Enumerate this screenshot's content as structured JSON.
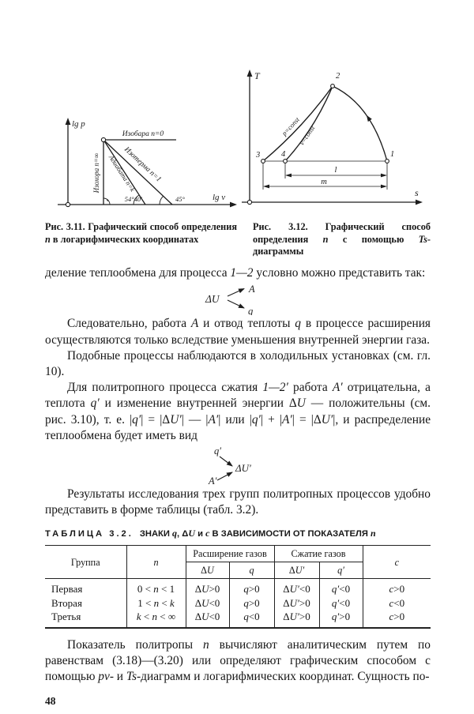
{
  "page_number": "48",
  "figures": {
    "fig311": {
      "labels": {
        "y_axis": "lg p",
        "x_axis": "lg v",
        "isobar": "Изобара n=0",
        "isochore": "Изохора n=∞",
        "isotherm": "Изотерма n=1",
        "adiabat": "Адиабата n=k",
        "angle_adiabat": "54°40′",
        "angle_isotherm": "45°"
      },
      "caption": [
        [
          "Рис. 3.11. Графический способ определения "
        ],
        [
          "n",
          "i"
        ],
        [
          " в логарифмических координатах"
        ]
      ]
    },
    "fig312": {
      "labels": {
        "y_axis": "T",
        "x_axis": "s",
        "curve_p": "p=const",
        "curve_v": "v=const",
        "point_1": "1",
        "point_2": "2",
        "point_3": "3",
        "point_4": "4",
        "dim_l": "l",
        "dim_m": "m"
      },
      "caption": [
        [
          "Рис. 3.12. Графический способ определения "
        ],
        [
          "n",
          "i"
        ],
        [
          " с помощью "
        ],
        [
          "Ts",
          "i"
        ],
        [
          "-диаграммы"
        ]
      ]
    }
  },
  "body": {
    "p1": [
      [
        "деление теплообмена для процесса "
      ],
      [
        "1—2",
        "i"
      ],
      [
        " условно можно представить так:"
      ]
    ],
    "scheme1": {
      "du": "ΔU",
      "a": "A",
      "q": "q"
    },
    "p2": [
      [
        "Следовательно, работа "
      ],
      [
        "A",
        "i"
      ],
      [
        " и отвод теплоты "
      ],
      [
        "q",
        "i"
      ],
      [
        " в процессе расширения осуществляются только вследствие уменьшения внутренней энергии газа."
      ]
    ],
    "p3": [
      [
        "Подобные процессы наблюдаются в холодильных установках (см. гл. 10)."
      ]
    ],
    "p4": [
      [
        "Для политропного процесса сжатия "
      ],
      [
        "1—2′",
        "i"
      ],
      [
        " работа "
      ],
      [
        "A′",
        "i"
      ],
      [
        " отрицательна, а теплота "
      ],
      [
        "q′",
        "i"
      ],
      [
        " и изменение внутренней энергии Δ"
      ],
      [
        "U",
        "i"
      ],
      [
        " — положительны (см. рис. 3.10), т. е. |"
      ],
      [
        "q′",
        "i"
      ],
      [
        "| = |Δ"
      ],
      [
        "U′",
        "i"
      ],
      [
        "| — |"
      ],
      [
        "A′",
        "i"
      ],
      [
        "| или |"
      ],
      [
        "q′",
        "i"
      ],
      [
        "| + |"
      ],
      [
        "A′",
        "i"
      ],
      [
        "| = |Δ"
      ],
      [
        "U′",
        "i"
      ],
      [
        "|, и распределение теплообмена будет иметь вид"
      ]
    ],
    "scheme2": {
      "q": "q′",
      "du": "ΔU′",
      "a": "A′"
    },
    "p5": [
      [
        "Результаты исследования трех групп политропных процессов удобно представить в форме таблицы (табл. 3.2)."
      ]
    ],
    "p6": [
      [
        "Показатель политропы "
      ],
      [
        "n",
        "i"
      ],
      [
        " вычисляют аналитическим путем по равенствам (3.18)—(3.20) или определяют графическим способом с помощью "
      ],
      [
        "pv",
        "i"
      ],
      [
        "- и "
      ],
      [
        "Ts",
        "i"
      ],
      [
        "-диаграмм и логарифмических координат. Сущность по-"
      ]
    ]
  },
  "table": {
    "title": [
      [
        "ТАБЛИЦА 3.2.",
        "sp"
      ],
      [
        "ЗНАКИ "
      ],
      [
        "q",
        "i"
      ],
      [
        ", Δ"
      ],
      [
        "U",
        "i"
      ],
      [
        " и "
      ],
      [
        "c",
        "i"
      ],
      [
        " В ЗАВИСИМОСТИ ОТ ПОКАЗАТЕЛЯ "
      ],
      [
        "n",
        "i"
      ]
    ],
    "headers": {
      "group": "Группа",
      "n": [
        [
          "n",
          "i"
        ]
      ],
      "expansion": "Расширение газов",
      "compression": "Сжатие газов",
      "du": [
        [
          "Δ"
        ],
        [
          "U",
          "i"
        ]
      ],
      "q": [
        [
          "q",
          "i"
        ]
      ],
      "du2": [
        [
          "Δ"
        ],
        [
          "U′",
          "i"
        ]
      ],
      "q2": [
        [
          "q′",
          "i"
        ]
      ],
      "c": [
        [
          "c",
          "i"
        ]
      ]
    },
    "rows": [
      {
        "cells": [
          [
            [
              "Первая"
            ]
          ],
          [
            [
              "0 < "
            ],
            [
              "n",
              "i"
            ],
            [
              " < 1"
            ]
          ],
          [
            [
              "Δ"
            ],
            [
              "U",
              "i"
            ],
            [
              ">0"
            ]
          ],
          [
            [
              "q",
              "i"
            ],
            [
              ">0"
            ]
          ],
          [
            [
              "Δ"
            ],
            [
              "U′",
              "i"
            ],
            [
              "<0"
            ]
          ],
          [
            [
              "q′",
              "i"
            ],
            [
              "<0"
            ]
          ],
          [
            [
              "c",
              "i"
            ],
            [
              ">0"
            ]
          ]
        ]
      },
      {
        "cells": [
          [
            [
              "Вторая"
            ]
          ],
          [
            [
              "1 < "
            ],
            [
              "n",
              "i"
            ],
            [
              " < "
            ],
            [
              "k",
              "i"
            ]
          ],
          [
            [
              "Δ"
            ],
            [
              "U",
              "i"
            ],
            [
              "<0"
            ]
          ],
          [
            [
              "q",
              "i"
            ],
            [
              ">0"
            ]
          ],
          [
            [
              "Δ"
            ],
            [
              "U′",
              "i"
            ],
            [
              ">0"
            ]
          ],
          [
            [
              "q′",
              "i"
            ],
            [
              "<0"
            ]
          ],
          [
            [
              "c",
              "i"
            ],
            [
              "<0"
            ]
          ]
        ]
      },
      {
        "cells": [
          [
            [
              "Третья"
            ]
          ],
          [
            [
              "k",
              "i"
            ],
            [
              " < "
            ],
            [
              "n",
              "i"
            ],
            [
              " < ∞"
            ]
          ],
          [
            [
              "Δ"
            ],
            [
              "U",
              "i"
            ],
            [
              "<0"
            ]
          ],
          [
            [
              "q",
              "i"
            ],
            [
              "<0"
            ]
          ],
          [
            [
              "Δ"
            ],
            [
              "U′",
              "i"
            ],
            [
              ">0"
            ]
          ],
          [
            [
              "q′",
              "i"
            ],
            [
              ">0"
            ]
          ],
          [
            [
              "c",
              "i"
            ],
            [
              ">0"
            ]
          ]
        ]
      }
    ]
  }
}
